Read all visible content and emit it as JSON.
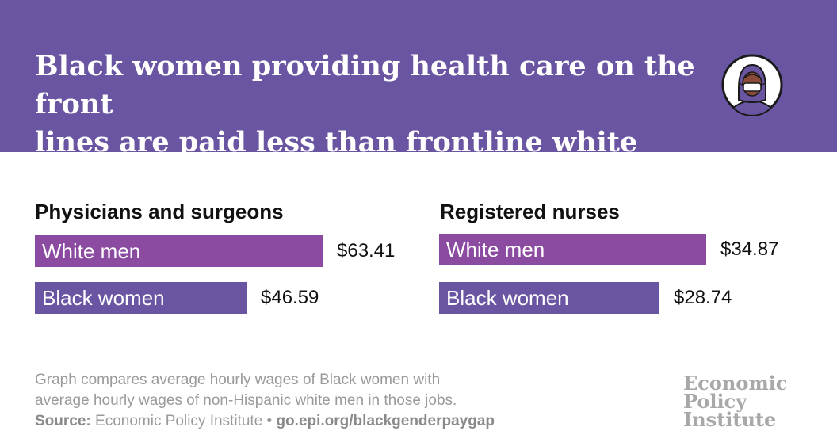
{
  "header": {
    "headline_line1": "Black women providing health care on the front",
    "headline_line2": "lines are paid less than frontline white men.",
    "icon": "health-worker-with-mask-icon",
    "background_color": "#6a55a2"
  },
  "chart_data": [
    {
      "type": "bar",
      "title": "Physicians and surgeons",
      "categories": [
        "White men",
        "Black women"
      ],
      "values": [
        63.41,
        46.59
      ],
      "value_labels": [
        "$63.41",
        "$46.59"
      ],
      "colors": [
        "#8a4ba0",
        "#6a55a2"
      ],
      "orientation": "horizontal"
    },
    {
      "type": "bar",
      "title": "Registered nurses",
      "categories": [
        "White men",
        "Black women"
      ],
      "values": [
        34.87,
        28.74
      ],
      "value_labels": [
        "$34.87",
        "$28.74"
      ],
      "colors": [
        "#8a4ba0",
        "#6a55a2"
      ],
      "orientation": "horizontal"
    }
  ],
  "footer": {
    "note_line1": "Graph compares average hourly wages of Black women with",
    "note_line2": "average hourly wages of non-Hispanic white men in those jobs.",
    "source_label": "Source:",
    "source_text": "Economic Policy Institute",
    "separator": "•",
    "source_url": "go.epi.org/blackgenderpaygap",
    "logo_line1": "Economic",
    "logo_line2": "Policy",
    "logo_line3": "Institute"
  }
}
